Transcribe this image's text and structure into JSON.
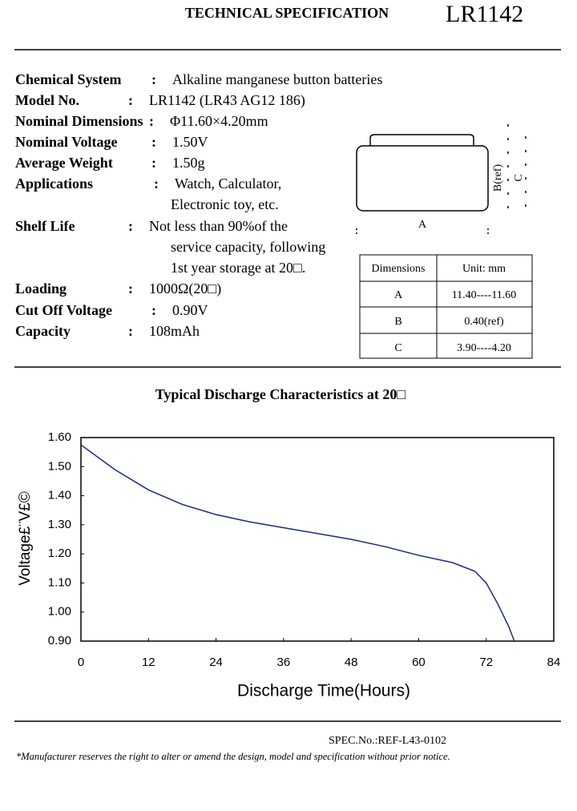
{
  "header": {
    "title": "TECHNICAL SPECIFICATION",
    "model": "LR1142"
  },
  "specs": [
    {
      "label": "Chemical System",
      "sep": ":",
      "lines": [
        "Alkaline manganese button batteries"
      ]
    },
    {
      "label": "Model No.",
      "sep": ":",
      "lines": [
        "LR1142 (LR43 AG12 186)"
      ]
    },
    {
      "label": "Nominal Dimensions",
      "sep": ":",
      "lines": [
        "Φ11.60×4.20mm"
      ]
    },
    {
      "label": "Nominal Voltage",
      "sep": ":",
      "lines": [
        "1.50V"
      ]
    },
    {
      "label": "Average Weight",
      "sep": ":",
      "lines": [
        "1.50g"
      ]
    },
    {
      "label": "Applications",
      "sep": ":",
      "lines": [
        "Watch, Calculator,",
        "Electronic toy, etc."
      ]
    },
    {
      "label": "Shelf Life",
      "sep": ":",
      "lines": [
        "Not less than 90%of the",
        "service capacity, following",
        "1st year storage at 20□."
      ]
    },
    {
      "label": "Loading",
      "sep": ":",
      "lines": [
        "1000Ω(20□)"
      ]
    },
    {
      "label": "Cut Off Voltage",
      "sep": ":",
      "lines": [
        "0.90V"
      ]
    },
    {
      "label": "Capacity",
      "sep": ":",
      "lines": [
        "108mAh"
      ]
    }
  ],
  "diagram": {
    "a": "A",
    "b": "B(ref)",
    "c": "C"
  },
  "table": {
    "header": [
      "Dimensions",
      "Unit: mm"
    ],
    "rows": [
      [
        "A",
        "11.40----11.60"
      ],
      [
        "B",
        "0.40(ref)"
      ],
      [
        "C",
        "3.90----4.20"
      ]
    ]
  },
  "chart_data": {
    "type": "line",
    "title": "Typical Discharge Characteristics at 20□",
    "x_label": "Discharge Time(Hours)",
    "y_label": "Voltage£¨V£©",
    "x": [
      0,
      6,
      12,
      18,
      24,
      30,
      36,
      42,
      48,
      54,
      60,
      66,
      70,
      72,
      74,
      76,
      77
    ],
    "series": [
      {
        "name": "LR1142",
        "color": "#1a2a80",
        "values": [
          1.575,
          1.49,
          1.42,
          1.37,
          1.335,
          1.31,
          1.29,
          1.27,
          1.25,
          1.225,
          1.195,
          1.17,
          1.14,
          1.1,
          1.03,
          0.95,
          0.9
        ]
      }
    ],
    "xlim": [
      0,
      84
    ],
    "xticks": [
      0,
      12,
      24,
      36,
      48,
      60,
      72,
      84
    ],
    "ylim": [
      0.9,
      1.6
    ],
    "yticks": [
      {
        "value": 0.9,
        "label": "0.90"
      },
      {
        "value": 1.0,
        "label": "1.00"
      },
      {
        "value": 1.1,
        "label": "1.10"
      },
      {
        "value": 1.2,
        "label": "1.20"
      },
      {
        "value": 1.3,
        "label": "1.30"
      },
      {
        "value": 1.4,
        "label": "1.40"
      },
      {
        "value": 1.5,
        "label": "1.50"
      },
      {
        "value": 1.6,
        "label": "1.60"
      }
    ]
  },
  "footer": {
    "spec_no": "SPEC.No.:REF-L43-0102",
    "notice": "*Manufacturer reserves the right to alter or amend the design, model and specification without prior notice."
  }
}
